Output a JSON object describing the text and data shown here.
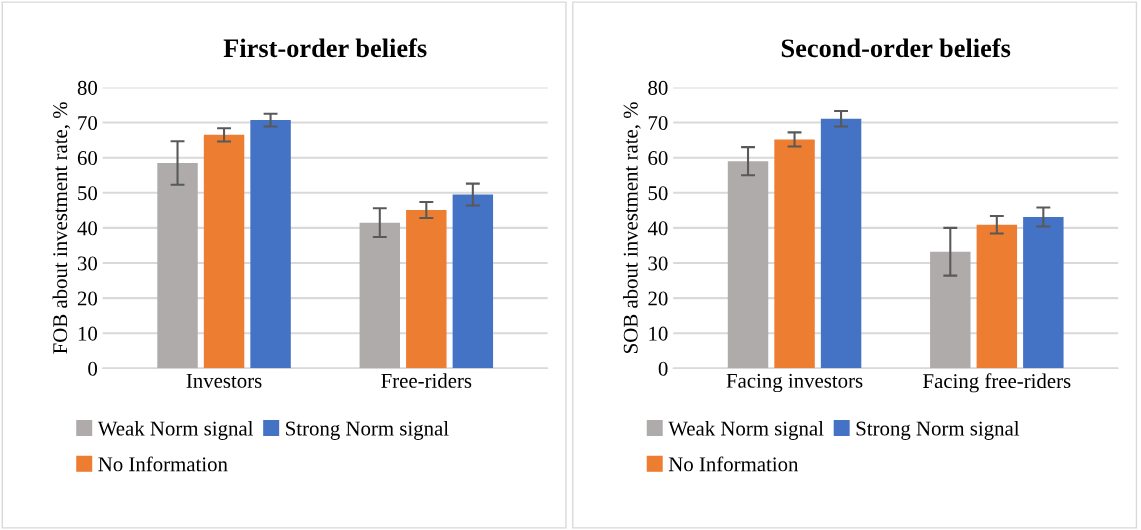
{
  "chart_data": [
    {
      "type": "bar",
      "title": "First-order beliefs",
      "ylabel": "FOB about investment rate, %",
      "categories": [
        "Investors",
        "Free-riders"
      ],
      "series": [
        {
          "name": "Weak Norm signal",
          "color": "#afabab",
          "values": [
            58.5,
            41.5
          ],
          "errors": [
            6.2,
            4.1
          ]
        },
        {
          "name": "No Information",
          "color": "#ed7d31",
          "values": [
            66.5,
            45.1
          ],
          "errors": [
            1.9,
            2.3
          ]
        },
        {
          "name": "Strong Norm signal",
          "color": "#4472c4",
          "values": [
            70.7,
            49.5
          ],
          "errors": [
            1.8,
            3.1
          ]
        }
      ],
      "ylim": [
        0,
        80
      ],
      "yticks": [
        0,
        10,
        20,
        30,
        40,
        50,
        60,
        70,
        80
      ],
      "grid": "y",
      "legend": "bottom"
    },
    {
      "type": "bar",
      "title": "Second-order beliefs",
      "ylabel": "SOB about investment rate, %",
      "categories": [
        "Facing investors",
        "Facing free-riders"
      ],
      "series": [
        {
          "name": "Weak Norm signal",
          "color": "#afabab",
          "values": [
            59.0,
            33.2
          ],
          "errors": [
            4.0,
            6.8
          ]
        },
        {
          "name": "No Information",
          "color": "#ed7d31",
          "values": [
            65.2,
            40.9
          ],
          "errors": [
            2.0,
            2.5
          ]
        },
        {
          "name": "Strong Norm signal",
          "color": "#4472c4",
          "values": [
            71.1,
            43.1
          ],
          "errors": [
            2.2,
            2.7
          ]
        }
      ],
      "ylim": [
        0,
        80
      ],
      "yticks": [
        0,
        10,
        20,
        30,
        40,
        50,
        60,
        70,
        80
      ],
      "grid": "y",
      "legend": "bottom"
    }
  ]
}
